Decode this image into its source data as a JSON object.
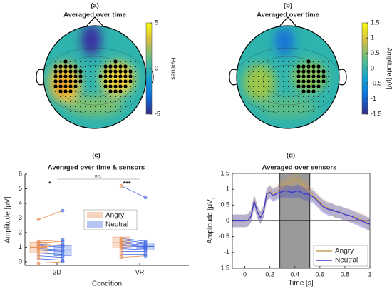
{
  "chart_data": [
    {
      "type": "topomap",
      "label": "(a)",
      "title": "Averaged over time",
      "colorbar_label": "t-values",
      "clim": [
        -5,
        5
      ],
      "cticks": [
        5,
        0,
        -5
      ]
    },
    {
      "type": "topomap",
      "label": "(b)",
      "title": "Averaged over time",
      "colorbar_label": "Amplitude [μV]",
      "clim": [
        -1.5,
        1.5
      ],
      "cticks": [
        1.5,
        1,
        0.5,
        0,
        -0.5,
        -1,
        -1.5
      ]
    },
    {
      "type": "paired_dot",
      "label": "(c)",
      "title": "Averaged over time & sensors",
      "ylabel": "Amplitude [μV]",
      "xlabel": "Condition",
      "categories": [
        "2D",
        "VR"
      ],
      "annotations": [
        "*",
        "n.s.",
        "***"
      ],
      "ylim": [
        -0.25,
        6
      ],
      "yticks": [
        0,
        1,
        2,
        3,
        4,
        5,
        6
      ],
      "series": [
        {
          "name": "Angry",
          "color": "#e9935b",
          "values": [
            [
              2.9,
              1.4,
              1.3,
              1.2,
              1.1,
              1.0,
              0.9,
              0.8,
              0.6,
              0.4,
              0.2,
              -0.1
            ],
            [
              5.2,
              1.6,
              1.5,
              1.4,
              1.3,
              1.2,
              1.1,
              1.0,
              0.9,
              0.7,
              0.5,
              0.3
            ]
          ],
          "box": [
            [
              0.6,
              1.0,
              1.35
            ],
            [
              0.95,
              1.3,
              1.7
            ]
          ]
        },
        {
          "name": "Neutral",
          "color": "#4a6fe3",
          "values": [
            [
              3.5,
              1.5,
              1.4,
              1.1,
              1.0,
              1.2,
              0.8,
              0.7,
              0.5,
              0.3,
              0.1,
              0.0
            ],
            [
              4.4,
              1.4,
              1.3,
              1.2,
              1.1,
              1.0,
              1.0,
              0.9,
              0.8,
              0.7,
              0.5,
              0.4
            ]
          ],
          "box": [
            [
              0.4,
              0.8,
              1.1
            ],
            [
              0.8,
              1.05,
              1.3
            ]
          ]
        }
      ]
    },
    {
      "type": "line",
      "label": "(d)",
      "title": "Averaged over sensors",
      "ylabel": "Amplitude [μV]",
      "xlabel": "Time [s]",
      "xlim": [
        -0.1,
        1
      ],
      "xticks": [
        0,
        0.2,
        0.4,
        0.6,
        0.8,
        1
      ],
      "ylim": [
        -1.5,
        1.5
      ],
      "yticks": [
        -1.5,
        -1,
        -0.5,
        0,
        0.5,
        1,
        1.5
      ],
      "window": [
        0.28,
        0.52
      ],
      "x": [
        -0.1,
        -0.075,
        -0.05,
        -0.025,
        0,
        0.025,
        0.05,
        0.075,
        0.1,
        0.125,
        0.15,
        0.175,
        0.2,
        0.225,
        0.25,
        0.275,
        0.3,
        0.325,
        0.35,
        0.375,
        0.4,
        0.425,
        0.45,
        0.475,
        0.5,
        0.525,
        0.55,
        0.575,
        0.6,
        0.625,
        0.65,
        0.675,
        0.7,
        0.725,
        0.75,
        0.775,
        0.8,
        0.825,
        0.85,
        0.875,
        0.9,
        0.925,
        0.95,
        0.975,
        1
      ],
      "series": [
        {
          "name": "Angry",
          "color": "#c9a05a",
          "ci": 0.2,
          "values": [
            0,
            0,
            0,
            0,
            0,
            0.02,
            0.15,
            0.65,
            0.3,
            0.1,
            0.3,
            0.8,
            0.95,
            0.85,
            0.9,
            1.0,
            1.1,
            1.15,
            1.2,
            1.25,
            1.3,
            1.28,
            1.2,
            1.1,
            1.0,
            0.9,
            0.8,
            0.7,
            0.6,
            0.5,
            0.45,
            0.4,
            0.35,
            0.3,
            0.3,
            0.25,
            0.2,
            0.18,
            0.15,
            0.12,
            0.1,
            0.05,
            0.02,
            -0.05,
            -0.1
          ]
        },
        {
          "name": "Neutral",
          "color": "#3a3ad0",
          "ci": 0.2,
          "values": [
            0,
            0,
            0,
            0,
            0,
            0.02,
            0.15,
            0.62,
            0.28,
            0.1,
            0.3,
            0.85,
            0.9,
            0.8,
            0.85,
            0.9,
            0.92,
            0.95,
            0.93,
            0.9,
            0.92,
            0.95,
            0.9,
            0.85,
            0.85,
            0.8,
            0.75,
            0.65,
            0.55,
            0.45,
            0.4,
            0.35,
            0.35,
            0.3,
            0.28,
            0.25,
            0.2,
            0.18,
            0.15,
            0.1,
            0.05,
            0.0,
            -0.02,
            -0.08,
            -0.1
          ]
        }
      ]
    }
  ]
}
